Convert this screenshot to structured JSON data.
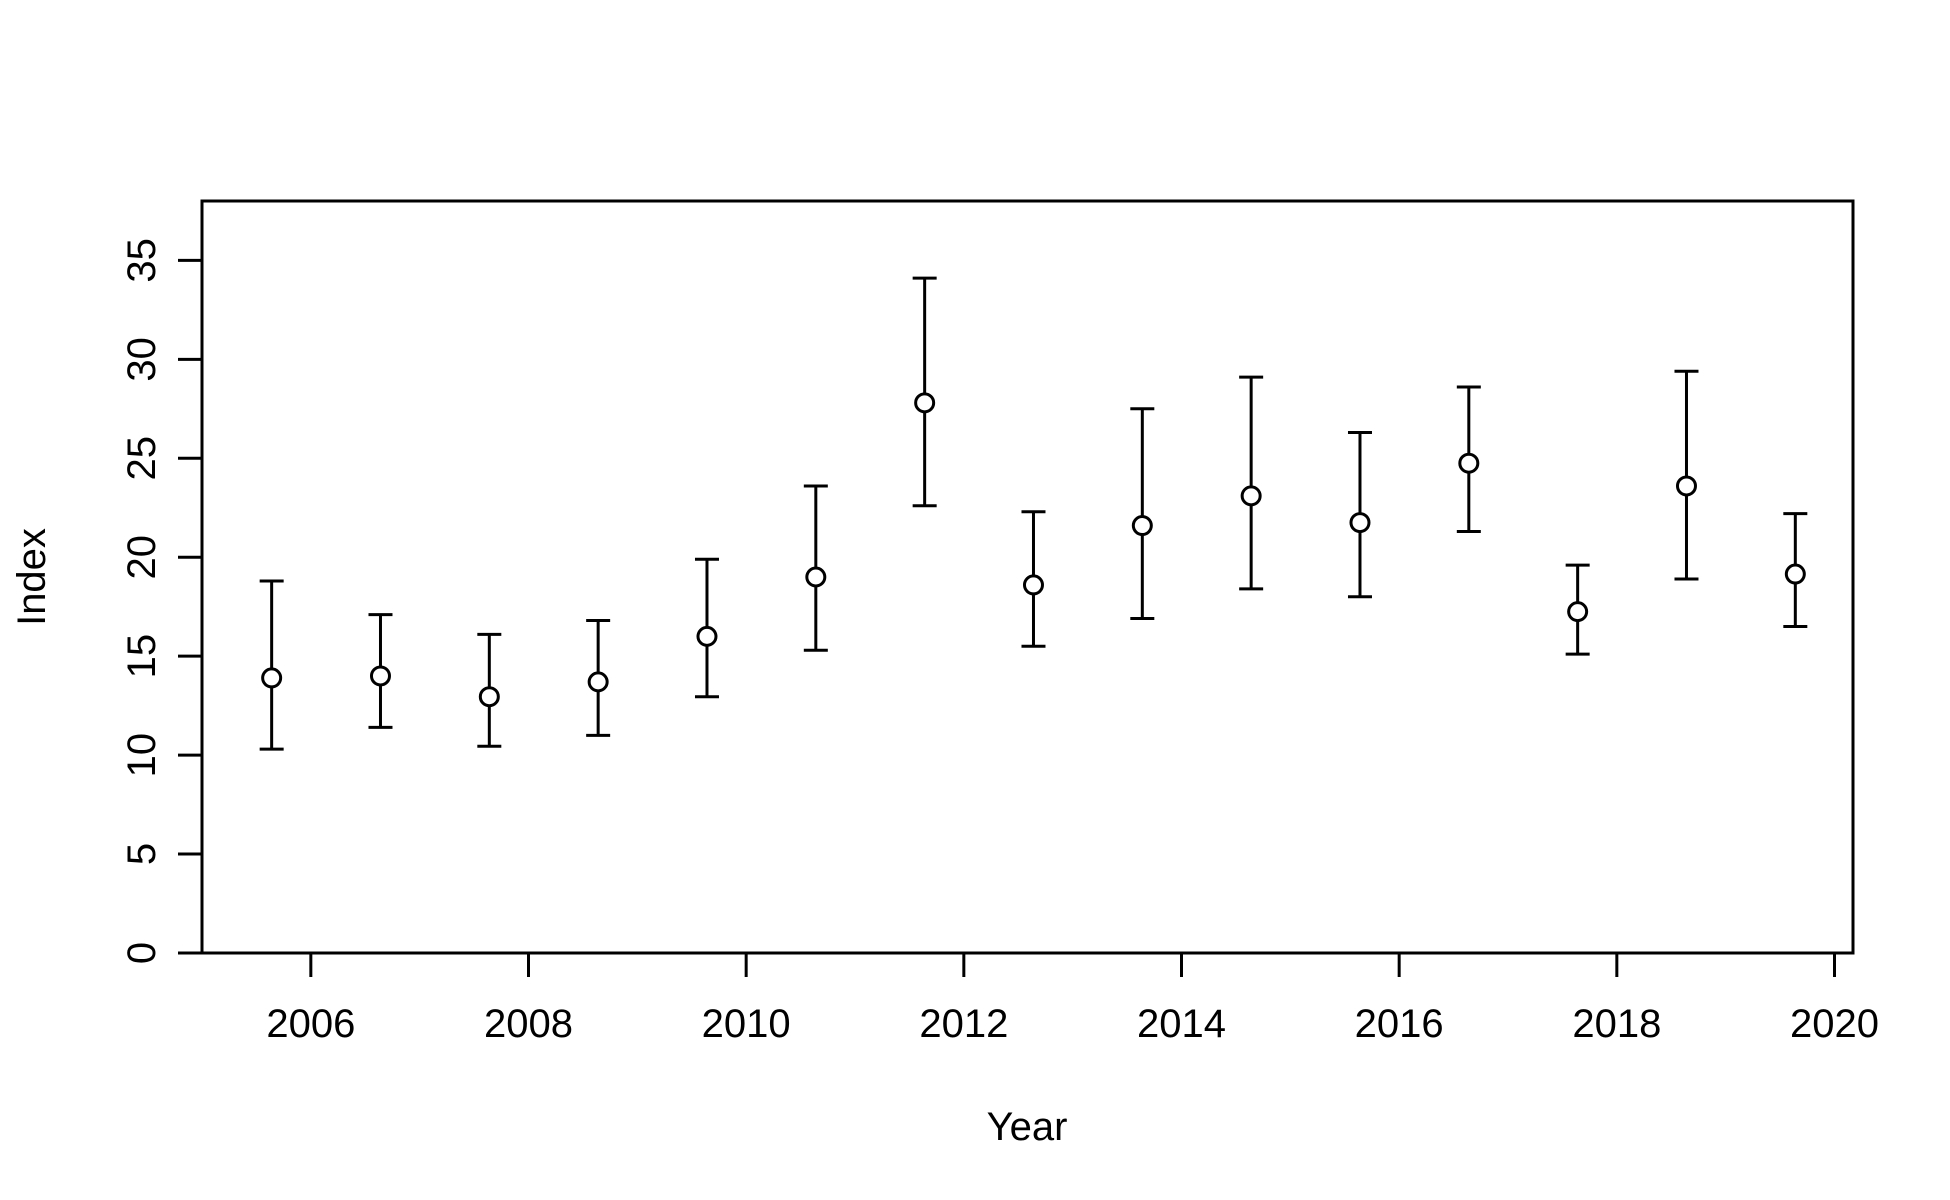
{
  "chart_data": {
    "type": "scatter",
    "title": "",
    "xlabel": "Year",
    "ylabel": "Index",
    "xlim": [
      2005.0,
      2020.17
    ],
    "ylim": [
      0,
      38
    ],
    "x_ticks": [
      2006,
      2008,
      2010,
      2012,
      2014,
      2016,
      2018,
      2020
    ],
    "y_ticks": [
      0,
      5,
      10,
      15,
      20,
      25,
      30,
      35
    ],
    "grid": false,
    "legend": "none",
    "marker": "open-circle",
    "error_bars": true,
    "points": [
      {
        "x": 2005.64,
        "y": 13.9,
        "lower": 10.3,
        "upper": 18.8
      },
      {
        "x": 2006.64,
        "y": 14.0,
        "lower": 11.4,
        "upper": 17.1
      },
      {
        "x": 2007.64,
        "y": 12.95,
        "lower": 10.45,
        "upper": 16.1
      },
      {
        "x": 2008.64,
        "y": 13.7,
        "lower": 11.0,
        "upper": 16.8
      },
      {
        "x": 2009.64,
        "y": 16.0,
        "lower": 12.95,
        "upper": 19.9
      },
      {
        "x": 2010.64,
        "y": 19.0,
        "lower": 15.3,
        "upper": 23.6
      },
      {
        "x": 2011.64,
        "y": 27.8,
        "lower": 22.6,
        "upper": 34.1
      },
      {
        "x": 2012.64,
        "y": 18.6,
        "lower": 15.5,
        "upper": 22.3
      },
      {
        "x": 2013.64,
        "y": 21.6,
        "lower": 16.9,
        "upper": 27.5
      },
      {
        "x": 2014.64,
        "y": 23.1,
        "lower": 18.4,
        "upper": 29.1
      },
      {
        "x": 2015.64,
        "y": 21.75,
        "lower": 18.0,
        "upper": 26.3
      },
      {
        "x": 2016.64,
        "y": 24.75,
        "lower": 21.3,
        "upper": 28.6
      },
      {
        "x": 2017.64,
        "y": 17.25,
        "lower": 15.1,
        "upper": 19.6
      },
      {
        "x": 2018.64,
        "y": 23.6,
        "lower": 18.9,
        "upper": 29.4
      },
      {
        "x": 2019.64,
        "y": 19.15,
        "lower": 16.5,
        "upper": 22.2
      }
    ]
  }
}
